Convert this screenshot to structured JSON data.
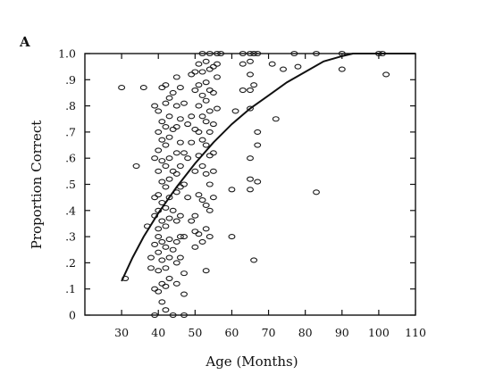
{
  "chart_data": {
    "type": "scatter",
    "panel_label": "A",
    "xlabel": "Age (Months)",
    "ylabel": "Proportion Correct",
    "xlim": [
      20,
      110
    ],
    "ylim": [
      0,
      1.0
    ],
    "x_ticks": [
      30,
      40,
      50,
      60,
      70,
      80,
      90,
      100,
      110
    ],
    "x_tick_labels": [
      "30",
      "40",
      "50",
      "60",
      "70",
      "80",
      "90",
      "100",
      "110"
    ],
    "y_ticks": [
      0,
      0.1,
      0.2,
      0.3,
      0.4,
      0.5,
      0.6,
      0.7,
      0.8,
      0.9,
      1.0
    ],
    "y_tick_labels": [
      "0",
      ".1",
      ".2",
      ".3",
      ".4",
      ".5",
      ".6",
      ".7",
      ".8",
      ".9",
      "1.0"
    ],
    "grid": false,
    "legend": "none",
    "points": [
      [
        30,
        0.87
      ],
      [
        31,
        0.14
      ],
      [
        34,
        0.57
      ],
      [
        36,
        0.87
      ],
      [
        37,
        0.34
      ],
      [
        38,
        0.18
      ],
      [
        38,
        0.22
      ],
      [
        39,
        0.8
      ],
      [
        39,
        0.6
      ],
      [
        39,
        0.45
      ],
      [
        39,
        0.38
      ],
      [
        39,
        0.27
      ],
      [
        39,
        0.1
      ],
      [
        39,
        0.0
      ],
      [
        40,
        0.78
      ],
      [
        40,
        0.7
      ],
      [
        40,
        0.63
      ],
      [
        40,
        0.55
      ],
      [
        40,
        0.46
      ],
      [
        40,
        0.4
      ],
      [
        40,
        0.33
      ],
      [
        40,
        0.3
      ],
      [
        40,
        0.24
      ],
      [
        40,
        0.17
      ],
      [
        40,
        0.09
      ],
      [
        41,
        0.87
      ],
      [
        41,
        0.74
      ],
      [
        41,
        0.67
      ],
      [
        41,
        0.59
      ],
      [
        41,
        0.51
      ],
      [
        41,
        0.43
      ],
      [
        41,
        0.36
      ],
      [
        41,
        0.28
      ],
      [
        41,
        0.21
      ],
      [
        41,
        0.12
      ],
      [
        41,
        0.05
      ],
      [
        42,
        0.88
      ],
      [
        42,
        0.81
      ],
      [
        42,
        0.72
      ],
      [
        42,
        0.65
      ],
      [
        42,
        0.57
      ],
      [
        42,
        0.49
      ],
      [
        42,
        0.41
      ],
      [
        42,
        0.34
      ],
      [
        42,
        0.26
      ],
      [
        42,
        0.18
      ],
      [
        42,
        0.11
      ],
      [
        42,
        0.02
      ],
      [
        43,
        0.83
      ],
      [
        43,
        0.76
      ],
      [
        43,
        0.68
      ],
      [
        43,
        0.6
      ],
      [
        43,
        0.52
      ],
      [
        43,
        0.45
      ],
      [
        43,
        0.37
      ],
      [
        43,
        0.29
      ],
      [
        43,
        0.22
      ],
      [
        43,
        0.14
      ],
      [
        44,
        0.85
      ],
      [
        44,
        0.71
      ],
      [
        44,
        0.55
      ],
      [
        44,
        0.4
      ],
      [
        44,
        0.25
      ],
      [
        44,
        0.0
      ],
      [
        45,
        0.91
      ],
      [
        45,
        0.8
      ],
      [
        45,
        0.72
      ],
      [
        45,
        0.62
      ],
      [
        45,
        0.54
      ],
      [
        45,
        0.47
      ],
      [
        45,
        0.36
      ],
      [
        45,
        0.28
      ],
      [
        45,
        0.2
      ],
      [
        45,
        0.12
      ],
      [
        46,
        0.87
      ],
      [
        46,
        0.75
      ],
      [
        46,
        0.66
      ],
      [
        46,
        0.57
      ],
      [
        46,
        0.49
      ],
      [
        46,
        0.38
      ],
      [
        46,
        0.3
      ],
      [
        46,
        0.22
      ],
      [
        47,
        0.81
      ],
      [
        47,
        0.62
      ],
      [
        47,
        0.5
      ],
      [
        47,
        0.3
      ],
      [
        47,
        0.16
      ],
      [
        47,
        0.08
      ],
      [
        47,
        0.0
      ],
      [
        48,
        0.73
      ],
      [
        48,
        0.6
      ],
      [
        48,
        0.45
      ],
      [
        49,
        0.92
      ],
      [
        49,
        0.76
      ],
      [
        49,
        0.66
      ],
      [
        49,
        0.36
      ],
      [
        50,
        0.93
      ],
      [
        50,
        0.86
      ],
      [
        50,
        0.71
      ],
      [
        50,
        0.55
      ],
      [
        50,
        0.38
      ],
      [
        50,
        0.32
      ],
      [
        50,
        0.26
      ],
      [
        51,
        0.96
      ],
      [
        51,
        0.88
      ],
      [
        51,
        0.8
      ],
      [
        51,
        0.7
      ],
      [
        51,
        0.61
      ],
      [
        51,
        0.46
      ],
      [
        51,
        0.31
      ],
      [
        52,
        1.0
      ],
      [
        52,
        0.93
      ],
      [
        52,
        0.84
      ],
      [
        52,
        0.76
      ],
      [
        52,
        0.67
      ],
      [
        52,
        0.57
      ],
      [
        52,
        0.44
      ],
      [
        52,
        0.28
      ],
      [
        53,
        0.97
      ],
      [
        53,
        0.89
      ],
      [
        53,
        0.82
      ],
      [
        53,
        0.74
      ],
      [
        53,
        0.65
      ],
      [
        53,
        0.54
      ],
      [
        53,
        0.42
      ],
      [
        53,
        0.33
      ],
      [
        53,
        0.17
      ],
      [
        54,
        1.0
      ],
      [
        54,
        0.94
      ],
      [
        54,
        0.86
      ],
      [
        54,
        0.78
      ],
      [
        54,
        0.7
      ],
      [
        54,
        0.61
      ],
      [
        54,
        0.5
      ],
      [
        54,
        0.4
      ],
      [
        54,
        0.3
      ],
      [
        55,
        0.95
      ],
      [
        55,
        0.85
      ],
      [
        55,
        0.73
      ],
      [
        55,
        0.62
      ],
      [
        55,
        0.55
      ],
      [
        55,
        0.45
      ],
      [
        56,
        0.96
      ],
      [
        56,
        0.91
      ],
      [
        56,
        0.79
      ],
      [
        56,
        1.0
      ],
      [
        57,
        1.0
      ],
      [
        60,
        0.48
      ],
      [
        60,
        0.3
      ],
      [
        61,
        0.78
      ],
      [
        63,
        1.0
      ],
      [
        63,
        0.96
      ],
      [
        63,
        0.86
      ],
      [
        65,
        1.0
      ],
      [
        65,
        0.97
      ],
      [
        65,
        0.92
      ],
      [
        65,
        0.86
      ],
      [
        65,
        0.79
      ],
      [
        65,
        0.6
      ],
      [
        65,
        0.52
      ],
      [
        65,
        0.48
      ],
      [
        66,
        1.0
      ],
      [
        66,
        0.88
      ],
      [
        66,
        0.21
      ],
      [
        67,
        1.0
      ],
      [
        67,
        0.7
      ],
      [
        67,
        0.65
      ],
      [
        67,
        0.51
      ],
      [
        71,
        0.96
      ],
      [
        72,
        0.75
      ],
      [
        74,
        0.94
      ],
      [
        77,
        1.0
      ],
      [
        78,
        0.95
      ],
      [
        83,
        1.0
      ],
      [
        83,
        0.47
      ],
      [
        90,
        1.0
      ],
      [
        90,
        0.94
      ],
      [
        100,
        1.0
      ],
      [
        101,
        1.0
      ],
      [
        102,
        0.92
      ]
    ],
    "trend_line": [
      [
        30,
        0.13
      ],
      [
        33,
        0.22
      ],
      [
        36,
        0.3
      ],
      [
        40,
        0.39
      ],
      [
        45,
        0.49
      ],
      [
        50,
        0.58
      ],
      [
        55,
        0.66
      ],
      [
        60,
        0.73
      ],
      [
        65,
        0.79
      ],
      [
        70,
        0.84
      ],
      [
        75,
        0.89
      ],
      [
        80,
        0.93
      ],
      [
        85,
        0.97
      ],
      [
        90,
        0.99
      ],
      [
        93,
        1.0
      ],
      [
        110,
        1.0
      ]
    ]
  }
}
